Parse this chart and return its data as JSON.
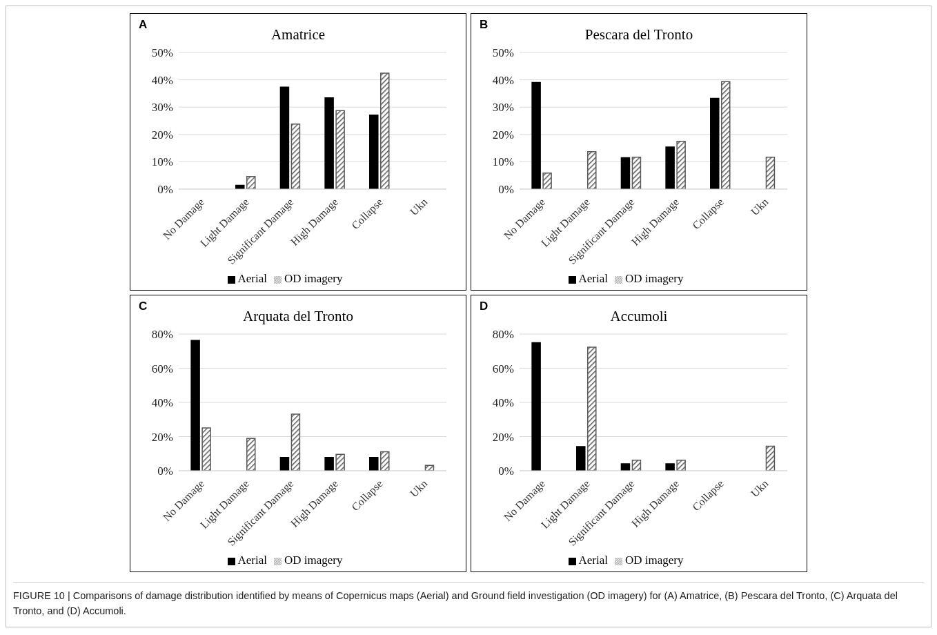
{
  "chart_data": [
    {
      "type": "bar",
      "title": "Amatrice",
      "annotations": [
        "A"
      ],
      "categories": [
        "No Damage",
        "Light Damage",
        "Significant Damage",
        "High Damage",
        "Collapse",
        "Ukn"
      ],
      "series": [
        {
          "name": "Aerial",
          "color": "#000000",
          "values": [
            0,
            1.4,
            37.3,
            33.4,
            27.1,
            0
          ]
        },
        {
          "name": "OD imagery",
          "color": "#595959",
          "values": [
            0,
            4.6,
            23.8,
            28.7,
            42.4,
            0
          ]
        }
      ],
      "ylim": [
        0,
        50
      ],
      "yticks": [
        {
          "value": 0,
          "label": "0%"
        },
        {
          "value": 10,
          "label": "10%"
        },
        {
          "value": 20,
          "label": "20%"
        },
        {
          "value": 30,
          "label": "30%"
        },
        {
          "value": 40,
          "label": "40%"
        },
        {
          "value": 50,
          "label": "50%"
        }
      ],
      "grid": "y",
      "legend": "bottom"
    },
    {
      "type": "bar",
      "title": "Pescara del Tronto",
      "annotations": [
        "B"
      ],
      "categories": [
        "No Damage",
        "Light Damage",
        "Significant Damage",
        "High Damage",
        "Collapse",
        "Ukn"
      ],
      "series": [
        {
          "name": "Aerial",
          "color": "#000000",
          "values": [
            39.0,
            0,
            11.5,
            15.4,
            33.2,
            0
          ]
        },
        {
          "name": "OD imagery",
          "color": "#595959",
          "values": [
            5.9,
            13.7,
            11.7,
            17.5,
            39.3,
            11.7
          ]
        }
      ],
      "ylim": [
        0,
        50
      ],
      "yticks": [
        {
          "value": 0,
          "label": "0%"
        },
        {
          "value": 10,
          "label": "10%"
        },
        {
          "value": 20,
          "label": "20%"
        },
        {
          "value": 30,
          "label": "30%"
        },
        {
          "value": 40,
          "label": "40%"
        },
        {
          "value": 50,
          "label": "50%"
        }
      ],
      "grid": "y",
      "legend": "bottom"
    },
    {
      "type": "bar",
      "title": "Arquata del Tronto",
      "annotations": [
        "C"
      ],
      "categories": [
        "No Damage",
        "Light Damage",
        "Significant Damage",
        "High Damage",
        "Collapse",
        "Ukn"
      ],
      "series": [
        {
          "name": "Aerial",
          "color": "#000000",
          "values": [
            76.3,
            0,
            7.8,
            7.8,
            7.8,
            0
          ]
        },
        {
          "name": "OD imagery",
          "color": "#595959",
          "values": [
            25.1,
            18.9,
            33.1,
            9.6,
            11.1,
            3.1
          ]
        }
      ],
      "ylim": [
        0,
        80
      ],
      "yticks": [
        {
          "value": 0,
          "label": "0%"
        },
        {
          "value": 20,
          "label": "20%"
        },
        {
          "value": 40,
          "label": "40%"
        },
        {
          "value": 60,
          "label": "60%"
        },
        {
          "value": 80,
          "label": "80%"
        }
      ],
      "grid": "y",
      "legend": "bottom"
    },
    {
      "type": "bar",
      "title": "Accumoli",
      "annotations": [
        "D",
        "FIGURE 10 | Comparisons of damage distribution identified by means of Copernicus maps (Aerial) and Ground field investigation (OD imagery) for (A) Amatrice, (B) Pescara del Tronto, (C) Arquata del Tronto, and (D) Accumoli."
      ],
      "categories": [
        "No Damage",
        "Light Damage",
        "Significant Damage",
        "High Damage",
        "Collapse",
        "Ukn"
      ],
      "series": [
        {
          "name": "Aerial",
          "color": "#000000",
          "values": [
            75.0,
            14.1,
            4.0,
            4.0,
            0,
            0
          ]
        },
        {
          "name": "OD imagery",
          "color": "#595959",
          "values": [
            0,
            72.3,
            6.2,
            6.2,
            0,
            14.3
          ]
        }
      ],
      "ylim": [
        0,
        80
      ],
      "yticks": [
        {
          "value": 0,
          "label": "0%"
        },
        {
          "value": 20,
          "label": "20%"
        },
        {
          "value": 40,
          "label": "40%"
        },
        {
          "value": 60,
          "label": "60%"
        },
        {
          "value": 80,
          "label": "80%"
        }
      ],
      "grid": "y",
      "legend": "bottom"
    }
  ]
}
